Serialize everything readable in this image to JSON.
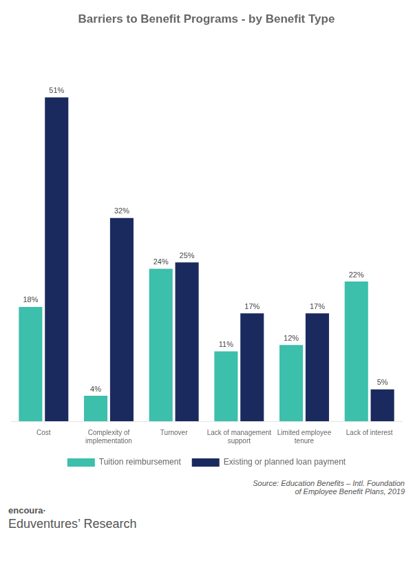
{
  "chart_data": {
    "type": "bar",
    "title": "Barriers to Benefit Programs - by Benefit Type",
    "categories": [
      "Cost",
      "Complexity of\nimplementation",
      "Turnover",
      "Lack of management\nsupport",
      "Limited employee\ntenure",
      "Lack of interest"
    ],
    "series": [
      {
        "name": "Tuition reimbursement",
        "color": "#3cbfab",
        "values": [
          18,
          4,
          24,
          11,
          12,
          22
        ],
        "value_labels": [
          "18%",
          "4%",
          "24%",
          "11%",
          "12%",
          "22%"
        ]
      },
      {
        "name": "Existing or planned loan payment",
        "color": "#1b2a5e",
        "values": [
          51,
          32,
          25,
          17,
          17,
          5
        ],
        "value_labels": [
          "51%",
          "32%",
          "25%",
          "17%",
          "17%",
          "5%"
        ]
      }
    ],
    "ylim": [
      0,
      60
    ],
    "grid": false,
    "legend": "bottom",
    "data_labels": true,
    "tick_labels": "x",
    "annotations": [
      "Source: Education Benefits – Intl. Foundation\nof Employee Benefit Plans, 2019",
      "encoura·",
      "Eduventures’ Research"
    ]
  }
}
